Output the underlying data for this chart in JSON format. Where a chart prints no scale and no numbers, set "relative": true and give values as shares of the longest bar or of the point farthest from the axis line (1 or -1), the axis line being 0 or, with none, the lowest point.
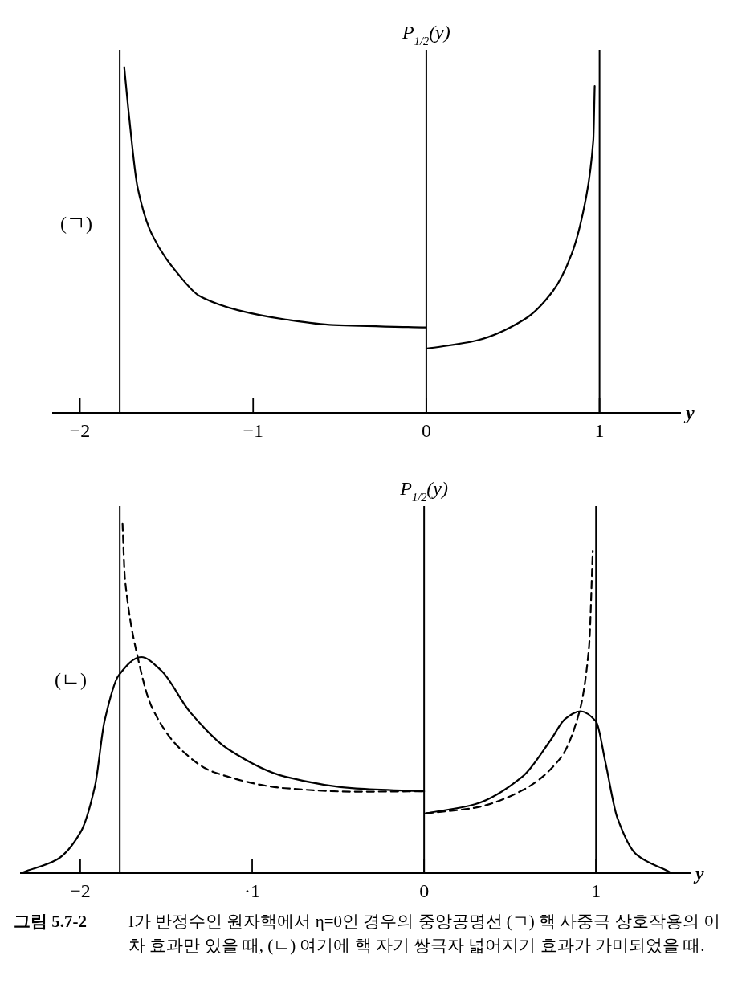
{
  "chart_data": [
    {
      "type": "line",
      "relative": true,
      "xlabel": "y",
      "ylabel": "P$_{1/2}$(y)",
      "xlim": [
        -2.16,
        1.47
      ],
      "xticks": [
        {
          "value": -2,
          "label": "−2"
        },
        {
          "value": -1,
          "label": "−1"
        },
        {
          "value": 0,
          "label": "0"
        },
        {
          "value": 1,
          "label": "1"
        }
      ],
      "series": [
        {
          "color": "#000000",
          "line_style": "solid",
          "x": [
            -1.744,
            -1.716,
            -1.667,
            -1.584,
            -1.419,
            -1.309,
            -1.088,
            -0.813,
            -0.537,
            -0.005
          ],
          "values": [
            1,
            0.857,
            0.652,
            0.516,
            0.393,
            0.338,
            0.297,
            0.27,
            0.254,
            0.247
          ]
        },
        {
          "color": "#000000",
          "line_style": "solid",
          "x": [
            0.005,
            0.289,
            0.565,
            0.73,
            0.84,
            0.923,
            0.964,
            0.972
          ],
          "values": [
            0.186,
            0.209,
            0.27,
            0.352,
            0.461,
            0.625,
            0.789,
            0.945
          ]
        }
      ],
      "ref_lines": [
        {
          "axis": "x",
          "value": -1.77,
          "color": "#000000"
        },
        {
          "axis": "x",
          "value": 1,
          "color": "#000000"
        }
      ],
      "annotations": [
        "(ㄱ)"
      ]
    },
    {
      "type": "line",
      "relative": true,
      "xlabel": "y",
      "ylabel": "P$_{1/2}$(y)",
      "xlim": [
        -2.35,
        1.55
      ],
      "xticks": [
        {
          "value": -2,
          "label": "−2"
        },
        {
          "value": -1,
          "label": "·1"
        },
        {
          "value": 0,
          "label": "0"
        },
        {
          "value": 1,
          "label": "1"
        }
      ],
      "series": [
        {
          "color": "#000000",
          "line_style": "solid",
          "x": [
            -2.329,
            -2.135,
            -1.997,
            -1.914,
            -1.859,
            -1.776,
            -1.646,
            -1.528,
            -1.362,
            -1.141,
            -0.809,
            -0.395,
            0
          ],
          "values": [
            0.003,
            0.039,
            0.118,
            0.25,
            0.434,
            0.566,
            0.618,
            0.579,
            0.461,
            0.355,
            0.276,
            0.242,
            0.234
          ]
        },
        {
          "color": "#000000",
          "line_style": "solid",
          "x": [
            0.01,
            0.296,
            0.572,
            0.738,
            0.82,
            0.909,
            1.0,
            1.055,
            1.124,
            1.235,
            1.428
          ],
          "values": [
            0.171,
            0.197,
            0.276,
            0.382,
            0.441,
            0.463,
            0.434,
            0.316,
            0.158,
            0.053,
            0.003
          ]
        },
        {
          "color": "#000000",
          "line_style": "dashed",
          "x": [
            -1.754,
            -1.74,
            -1.666,
            -1.583,
            -1.417,
            -1.224,
            -0.809,
            -0.395,
            0
          ],
          "values": [
            1,
            0.842,
            0.618,
            0.474,
            0.355,
            0.289,
            0.243,
            0.233,
            0.234
          ]
        },
        {
          "color": "#000000",
          "line_style": "dashed",
          "x": [
            0.01,
            0.296,
            0.572,
            0.793,
            0.903,
            0.959,
            0.981
          ],
          "values": [
            0.171,
            0.187,
            0.237,
            0.329,
            0.461,
            0.645,
            0.921
          ]
        }
      ],
      "ref_lines": [
        {
          "axis": "x",
          "value": -1.77,
          "color": "#000000"
        },
        {
          "axis": "x",
          "value": 1,
          "color": "#000000"
        }
      ],
      "annotations": [
        "(ㄴ)",
        "그림 5.7-2",
        "I가 반정수인 원자핵에서 η=0인 경우의 중앙공명선 (ㄱ) 핵 사중극 상호작용의 이차 효과만 있을 때, (ㄴ) 여기에 핵 자기 쌍극자 넓어지기 효과가 가미되었을 때."
      ]
    }
  ]
}
